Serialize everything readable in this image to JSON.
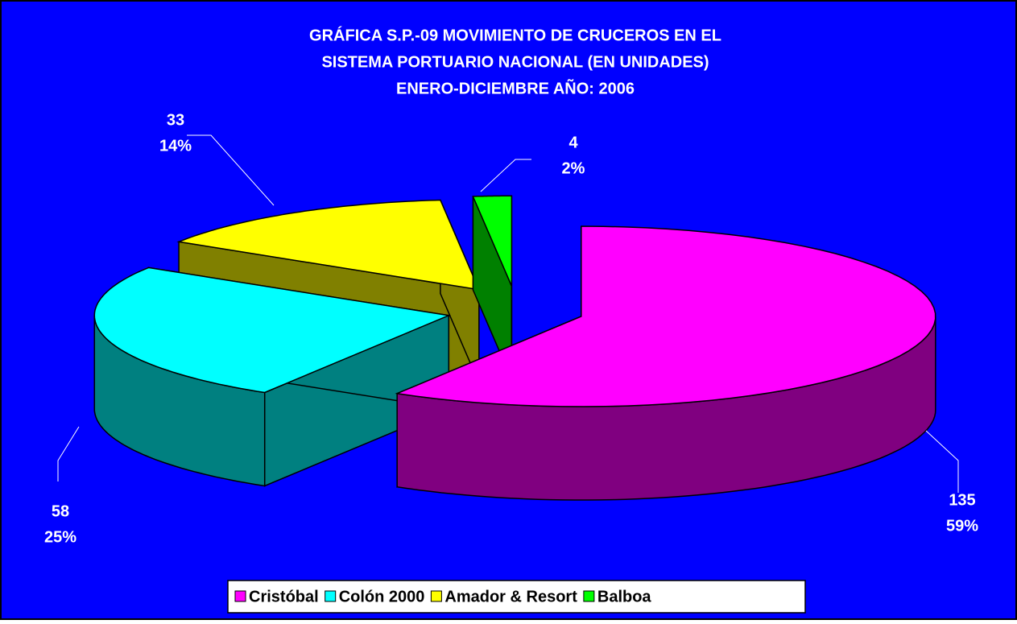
{
  "chart_data": {
    "type": "pie3d",
    "title": [
      "GRÁFICA S.P.-09 MOVIMIENTO DE CRUCEROS EN EL",
      "SISTEMA PORTUARIO NACIONAL (EN UNIDADES)",
      "ENERO-DICIEMBRE AÑO: 2006"
    ],
    "categories": [
      "Cristóbal",
      "Colón 2000",
      "Amador & Resort",
      "Balboa"
    ],
    "values": [
      135,
      58,
      33,
      4
    ],
    "percents": [
      59,
      25,
      14,
      2
    ],
    "percent_labels": [
      "59%",
      "25%",
      "14%",
      "2%"
    ],
    "colors": [
      "#ff00ff",
      "#00ffff",
      "#ffff00",
      "#00ff00"
    ],
    "side_colors": [
      "#800080",
      "#008080",
      "#808000",
      "#008000"
    ],
    "legend": "bottom"
  }
}
